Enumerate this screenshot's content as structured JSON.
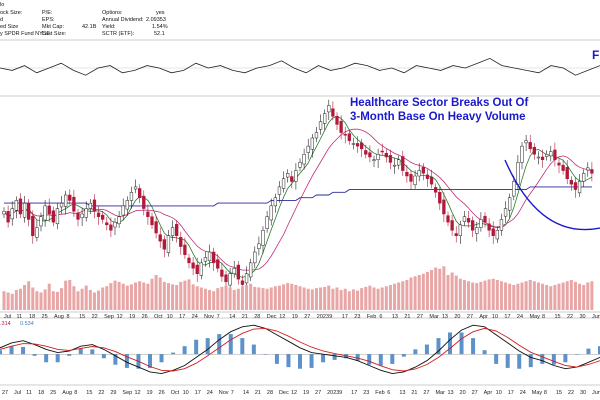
{
  "header": {
    "fund_name": "y SPDR Fund  NYSE",
    "left_labels": [
      "lo",
      "ock Size:",
      "d",
      "ed Size"
    ],
    "col2": [
      {
        "label": "P/E:",
        "value": ""
      },
      {
        "label": "EPS:",
        "value": ""
      },
      {
        "label": "Mkt Cap:",
        "value": "42.1B"
      },
      {
        "label": "Last Size:",
        "value": ""
      }
    ],
    "col3": [
      {
        "label": "Options:",
        "value": "yes"
      },
      {
        "label": "Annual Dividend:",
        "value": "2.09353"
      },
      {
        "label": "Yield:",
        "value": "1.54%"
      },
      {
        "label": "SCTR (ETF):",
        "value": "52.1"
      }
    ],
    "corner_letter": "F"
  },
  "annotation": {
    "line1": "Healthcare Sector Breaks Out Of",
    "line2": "3-Month Base On Heavy Volume"
  },
  "macd_legend": {
    "v1": ".314",
    "v2": "0.534"
  },
  "colors": {
    "up": "#222222",
    "down": "#b0193a",
    "ma_short": "#2a7a2a",
    "ma_mid": "#c0307a",
    "ma_long": "#2a2a9a",
    "volume": "#e8a6a6",
    "macd_line": "#111111",
    "macd_signal": "#d02020",
    "histogram": "#3f7fc0",
    "annotation": "#1a1acc"
  },
  "chart_data": [
    {
      "type": "line",
      "name_printed": "",
      "panel": "relative strength",
      "series": [
        {
          "values": [
            0.5,
            0.4,
            0.6,
            0.3,
            0.5,
            0.7,
            0.4,
            0.2,
            0.5,
            0.6,
            0.3,
            0.4,
            0.6,
            0.5,
            0.3,
            0.4,
            0.7,
            0.5,
            0.6,
            0.4,
            0.3,
            0.5,
            0.6,
            0.8,
            0.5,
            0.3,
            0.6,
            0.4,
            0.5,
            0.7,
            0.6,
            0.4,
            0.5,
            0.3,
            0.6,
            0.5,
            0.4,
            0.6,
            0.5,
            0.7,
            0.9,
            0.6,
            0.5,
            0.4,
            0.3,
            0.6,
            0.5,
            0.2,
            0.4,
            0.6
          ]
        }
      ]
    },
    {
      "type": "candlestick",
      "panel": "price",
      "x_tick_labels": [
        "Jul",
        "11",
        "18",
        "25",
        "Aug",
        "8",
        "15",
        "22",
        "Sep",
        "12",
        "19",
        "26",
        "Oct",
        "10",
        "17",
        "24",
        "Nov",
        "7",
        "14",
        "21",
        "28",
        "Dec",
        "12",
        "19",
        "27",
        "2023",
        "9",
        "17",
        "23",
        "Feb",
        "6",
        "13",
        "21",
        "27",
        "Mar",
        "13",
        "20",
        "27",
        "Apr",
        "10",
        "17",
        "24",
        "May",
        "8",
        "15",
        "22",
        "30",
        "Jun"
      ],
      "closes": [
        59,
        55,
        60,
        63,
        58,
        62,
        56,
        50,
        53,
        57,
        61,
        58,
        55,
        60,
        62,
        65,
        63,
        59,
        56,
        58,
        60,
        62,
        59,
        57,
        56,
        54,
        52,
        55,
        57,
        61,
        63,
        66,
        68,
        64,
        60,
        57,
        54,
        51,
        48,
        45,
        50,
        53,
        50,
        46,
        43,
        40,
        38,
        36,
        40,
        42,
        44,
        40,
        38,
        35,
        33,
        36,
        38,
        34,
        32,
        36,
        40,
        44,
        47,
        52,
        57,
        61,
        64,
        68,
        71,
        73,
        70,
        74,
        77,
        80,
        83,
        86,
        88,
        92,
        95,
        98,
        94,
        91,
        88,
        87,
        85,
        84,
        83,
        82,
        80,
        79,
        78,
        80,
        81,
        79,
        77,
        76,
        78,
        74,
        72,
        70,
        72,
        74,
        73,
        71,
        69,
        66,
        62,
        58,
        55,
        52,
        50,
        54,
        57,
        55,
        52,
        53,
        56,
        55,
        52,
        50,
        52,
        56,
        60,
        64,
        70,
        77,
        83,
        85,
        82,
        80,
        79,
        78,
        80,
        81,
        78,
        76,
        74,
        71,
        69,
        67,
        70,
        73,
        75,
        73
      ],
      "ma_short_label": "",
      "ma_long": [
        62,
        62,
        62,
        62,
        62,
        62,
        62,
        62,
        62,
        62,
        62,
        62,
        62,
        62,
        62,
        62,
        62,
        62,
        62,
        62,
        62,
        61,
        61,
        61,
        61,
        61,
        61,
        61,
        61,
        61,
        61,
        61,
        61,
        61,
        61,
        61,
        61,
        61,
        61,
        61,
        61,
        61,
        61,
        61,
        61,
        61,
        61,
        61,
        61,
        61,
        61,
        61,
        62,
        62,
        62,
        62,
        62,
        62,
        62,
        62,
        62,
        62,
        62,
        62,
        62,
        63,
        63,
        63,
        63,
        63,
        63,
        63,
        64,
        64,
        64,
        64,
        65,
        65,
        65,
        65,
        66,
        66,
        66,
        66,
        67,
        67,
        67,
        67,
        67,
        67,
        67,
        67,
        67,
        67,
        67,
        67,
        67,
        67,
        67,
        67,
        67,
        67,
        67,
        67,
        67,
        67,
        67,
        67,
        67,
        67,
        67,
        67,
        67,
        67,
        67,
        67,
        67,
        67,
        67,
        67,
        67,
        67,
        67,
        67,
        67,
        67,
        67,
        67,
        68,
        68,
        68,
        68,
        68,
        68,
        68,
        68,
        68,
        68,
        68,
        68,
        68,
        68,
        68,
        68
      ],
      "breakout_arc": true
    },
    {
      "type": "bar",
      "panel": "volume",
      "values": [
        30,
        28,
        26,
        32,
        34,
        40,
        46,
        36,
        30,
        28,
        33,
        42,
        30,
        29,
        35,
        47,
        48,
        38,
        30,
        34,
        39,
        32,
        28,
        31,
        36,
        38,
        43,
        47,
        45,
        42,
        39,
        41,
        44,
        46,
        44,
        42,
        50,
        56,
        52,
        45,
        43,
        41,
        40,
        45,
        47,
        49,
        41,
        38,
        36,
        34,
        32,
        30,
        35,
        37,
        39,
        36,
        32,
        34,
        38,
        40,
        42,
        37,
        36,
        35,
        34,
        36,
        38,
        39,
        41,
        43,
        42,
        40,
        38,
        36,
        34,
        33,
        35,
        36,
        37,
        39,
        34,
        36,
        32,
        34,
        30,
        33,
        31,
        35,
        37,
        39,
        36,
        34,
        36,
        38,
        40,
        42,
        44,
        46,
        48,
        52,
        54,
        56,
        58,
        61,
        64,
        68,
        66,
        70,
        56,
        60,
        55,
        50,
        48,
        46,
        44,
        43,
        45,
        47,
        49,
        50,
        48,
        46,
        44,
        42,
        40,
        42,
        44,
        46,
        48,
        46,
        44,
        42,
        40,
        38,
        40,
        42,
        44,
        46,
        48,
        45,
        42,
        40,
        44,
        46
      ]
    },
    {
      "type": "line",
      "panel": "macd",
      "x_tick_labels": [
        "27",
        "Jul",
        "11",
        "18",
        "25",
        "Aug",
        "8",
        "15",
        "22",
        "29",
        "Sep",
        "12",
        "19",
        "26",
        "Oct",
        "10",
        "17",
        "24",
        "Nov",
        "7",
        "14",
        "21",
        "28",
        "Dec",
        "12",
        "19",
        "27",
        "2023",
        "9",
        "17",
        "23",
        "Feb",
        "6",
        "13",
        "21",
        "27",
        "Mar",
        "13",
        "20",
        "27",
        "Apr",
        "10",
        "17",
        "24",
        "May",
        "8",
        "15",
        "22",
        "30",
        "Jun"
      ],
      "series": [
        {
          "values": [
            0.2,
            0.35,
            0.42,
            0.3,
            0.15,
            0.05,
            0.1,
            0.25,
            0.3,
            0.15,
            -0.05,
            -0.25,
            -0.4,
            -0.55,
            -0.6,
            -0.5,
            -0.35,
            -0.1,
            0.15,
            0.45,
            0.7,
            0.85,
            0.9,
            0.8,
            0.6,
            0.4,
            0.2,
            0.05,
            0.0,
            -0.05,
            -0.1,
            -0.2,
            -0.35,
            -0.5,
            -0.6,
            -0.55,
            -0.4,
            -0.2,
            0.1,
            0.45,
            0.75,
            0.9,
            0.85,
            0.6,
            0.35,
            0.1,
            -0.1,
            -0.2,
            -0.35,
            -0.45,
            -0.4,
            -0.25,
            -0.1
          ]
        },
        {
          "values": [
            0.15,
            0.25,
            0.33,
            0.32,
            0.25,
            0.15,
            0.12,
            0.18,
            0.24,
            0.2,
            0.08,
            -0.08,
            -0.22,
            -0.38,
            -0.5,
            -0.52,
            -0.45,
            -0.28,
            -0.05,
            0.2,
            0.45,
            0.65,
            0.78,
            0.8,
            0.72,
            0.56,
            0.38,
            0.22,
            0.1,
            0.02,
            -0.05,
            -0.12,
            -0.22,
            -0.36,
            -0.48,
            -0.52,
            -0.46,
            -0.32,
            -0.1,
            0.18,
            0.48,
            0.7,
            0.8,
            0.72,
            0.52,
            0.28,
            0.06,
            -0.08,
            -0.22,
            -0.35,
            -0.4,
            -0.32,
            -0.2
          ]
        }
      ],
      "ylim": [
        -0.8,
        1.0
      ]
    }
  ]
}
